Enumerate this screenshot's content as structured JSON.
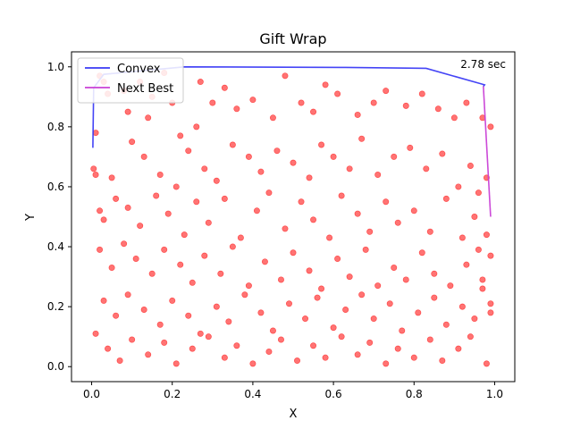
{
  "chart_data": {
    "type": "scatter",
    "title": "Gift Wrap",
    "xlabel": "X",
    "ylabel": "Y",
    "xlim": [
      -0.05,
      1.05
    ],
    "ylim": [
      -0.05,
      1.05
    ],
    "xticks": [
      "0.0",
      "0.2",
      "0.4",
      "0.6",
      "0.8",
      "1.0"
    ],
    "yticks": [
      "0.0",
      "0.2",
      "0.4",
      "0.6",
      "0.8",
      "1.0"
    ],
    "annotation": "2.78 sec",
    "legend": {
      "placement": "top-left",
      "entries": [
        {
          "label": "Convex",
          "color": "#3a3af5"
        },
        {
          "label": "Next Best",
          "color": "#c940d6"
        }
      ]
    },
    "points_color": "#ff0000",
    "points_note": "~500 uniformly distributed random points in [0,1]x[0,1]; representative subset reproduced",
    "series": [
      {
        "name": "Convex",
        "color": "#3a3af5",
        "x": [
          0.003,
          0.005,
          0.03,
          0.23,
          0.63,
          0.83,
          0.975,
          0.972
        ],
        "y": [
          0.73,
          0.93,
          0.975,
          1.0,
          0.998,
          0.995,
          0.94,
          0.935
        ]
      },
      {
        "name": "Next Best",
        "color": "#c940d6",
        "x": [
          0.972,
          0.99
        ],
        "y": [
          0.935,
          0.5
        ]
      }
    ],
    "points": [
      [
        0.02,
        0.97
      ],
      [
        0.03,
        0.95
      ],
      [
        0.04,
        0.91
      ],
      [
        0.01,
        0.78
      ],
      [
        0.005,
        0.66
      ],
      [
        0.01,
        0.64
      ],
      [
        0.02,
        0.52
      ],
      [
        0.05,
        0.63
      ],
      [
        0.03,
        0.49
      ],
      [
        0.08,
        0.92
      ],
      [
        0.09,
        0.85
      ],
      [
        0.12,
        0.95
      ],
      [
        0.15,
        0.9
      ],
      [
        0.14,
        0.83
      ],
      [
        0.18,
        0.98
      ],
      [
        0.2,
        0.88
      ],
      [
        0.22,
        0.77
      ],
      [
        0.26,
        0.8
      ],
      [
        0.27,
        0.95
      ],
      [
        0.3,
        0.88
      ],
      [
        0.33,
        0.93
      ],
      [
        0.36,
        0.86
      ],
      [
        0.4,
        0.89
      ],
      [
        0.45,
        0.83
      ],
      [
        0.48,
        0.97
      ],
      [
        0.52,
        0.88
      ],
      [
        0.55,
        0.85
      ],
      [
        0.58,
        0.94
      ],
      [
        0.61,
        0.91
      ],
      [
        0.66,
        0.84
      ],
      [
        0.7,
        0.88
      ],
      [
        0.73,
        0.92
      ],
      [
        0.78,
        0.87
      ],
      [
        0.82,
        0.91
      ],
      [
        0.86,
        0.86
      ],
      [
        0.9,
        0.83
      ],
      [
        0.93,
        0.88
      ],
      [
        0.97,
        0.83
      ],
      [
        0.1,
        0.75
      ],
      [
        0.13,
        0.7
      ],
      [
        0.17,
        0.64
      ],
      [
        0.21,
        0.6
      ],
      [
        0.24,
        0.72
      ],
      [
        0.28,
        0.66
      ],
      [
        0.31,
        0.62
      ],
      [
        0.35,
        0.74
      ],
      [
        0.39,
        0.7
      ],
      [
        0.42,
        0.65
      ],
      [
        0.46,
        0.72
      ],
      [
        0.5,
        0.68
      ],
      [
        0.54,
        0.63
      ],
      [
        0.57,
        0.74
      ],
      [
        0.6,
        0.7
      ],
      [
        0.64,
        0.66
      ],
      [
        0.67,
        0.76
      ],
      [
        0.71,
        0.64
      ],
      [
        0.75,
        0.7
      ],
      [
        0.79,
        0.73
      ],
      [
        0.83,
        0.66
      ],
      [
        0.87,
        0.71
      ],
      [
        0.91,
        0.6
      ],
      [
        0.94,
        0.67
      ],
      [
        0.96,
        0.58
      ],
      [
        0.06,
        0.56
      ],
      [
        0.09,
        0.53
      ],
      [
        0.12,
        0.47
      ],
      [
        0.16,
        0.57
      ],
      [
        0.19,
        0.51
      ],
      [
        0.23,
        0.44
      ],
      [
        0.26,
        0.55
      ],
      [
        0.29,
        0.48
      ],
      [
        0.33,
        0.56
      ],
      [
        0.37,
        0.43
      ],
      [
        0.41,
        0.52
      ],
      [
        0.44,
        0.58
      ],
      [
        0.48,
        0.46
      ],
      [
        0.52,
        0.55
      ],
      [
        0.55,
        0.49
      ],
      [
        0.59,
        0.43
      ],
      [
        0.62,
        0.57
      ],
      [
        0.66,
        0.51
      ],
      [
        0.69,
        0.45
      ],
      [
        0.73,
        0.55
      ],
      [
        0.76,
        0.48
      ],
      [
        0.8,
        0.52
      ],
      [
        0.84,
        0.45
      ],
      [
        0.88,
        0.56
      ],
      [
        0.92,
        0.43
      ],
      [
        0.95,
        0.5
      ],
      [
        0.98,
        0.44
      ],
      [
        0.02,
        0.39
      ],
      [
        0.05,
        0.33
      ],
      [
        0.08,
        0.41
      ],
      [
        0.11,
        0.36
      ],
      [
        0.15,
        0.31
      ],
      [
        0.18,
        0.39
      ],
      [
        0.22,
        0.34
      ],
      [
        0.25,
        0.28
      ],
      [
        0.28,
        0.37
      ],
      [
        0.32,
        0.31
      ],
      [
        0.35,
        0.4
      ],
      [
        0.39,
        0.27
      ],
      [
        0.43,
        0.35
      ],
      [
        0.47,
        0.29
      ],
      [
        0.5,
        0.38
      ],
      [
        0.54,
        0.32
      ],
      [
        0.57,
        0.26
      ],
      [
        0.61,
        0.36
      ],
      [
        0.64,
        0.3
      ],
      [
        0.68,
        0.39
      ],
      [
        0.71,
        0.27
      ],
      [
        0.75,
        0.33
      ],
      [
        0.78,
        0.29
      ],
      [
        0.82,
        0.38
      ],
      [
        0.85,
        0.31
      ],
      [
        0.89,
        0.27
      ],
      [
        0.93,
        0.34
      ],
      [
        0.97,
        0.29
      ],
      [
        0.99,
        0.37
      ],
      [
        0.03,
        0.22
      ],
      [
        0.06,
        0.17
      ],
      [
        0.09,
        0.24
      ],
      [
        0.13,
        0.19
      ],
      [
        0.17,
        0.14
      ],
      [
        0.2,
        0.22
      ],
      [
        0.24,
        0.17
      ],
      [
        0.27,
        0.11
      ],
      [
        0.31,
        0.2
      ],
      [
        0.34,
        0.15
      ],
      [
        0.38,
        0.24
      ],
      [
        0.42,
        0.18
      ],
      [
        0.45,
        0.12
      ],
      [
        0.49,
        0.21
      ],
      [
        0.53,
        0.16
      ],
      [
        0.56,
        0.23
      ],
      [
        0.6,
        0.13
      ],
      [
        0.63,
        0.19
      ],
      [
        0.67,
        0.24
      ],
      [
        0.7,
        0.16
      ],
      [
        0.74,
        0.21
      ],
      [
        0.77,
        0.12
      ],
      [
        0.81,
        0.18
      ],
      [
        0.85,
        0.23
      ],
      [
        0.88,
        0.14
      ],
      [
        0.92,
        0.2
      ],
      [
        0.95,
        0.16
      ],
      [
        0.99,
        0.21
      ],
      [
        0.01,
        0.11
      ],
      [
        0.04,
        0.06
      ],
      [
        0.07,
        0.02
      ],
      [
        0.1,
        0.09
      ],
      [
        0.14,
        0.04
      ],
      [
        0.18,
        0.08
      ],
      [
        0.21,
        0.01
      ],
      [
        0.25,
        0.06
      ],
      [
        0.29,
        0.1
      ],
      [
        0.33,
        0.03
      ],
      [
        0.36,
        0.07
      ],
      [
        0.4,
        0.01
      ],
      [
        0.44,
        0.05
      ],
      [
        0.47,
        0.09
      ],
      [
        0.51,
        0.02
      ],
      [
        0.55,
        0.07
      ],
      [
        0.58,
        0.03
      ],
      [
        0.62,
        0.1
      ],
      [
        0.66,
        0.04
      ],
      [
        0.69,
        0.08
      ],
      [
        0.73,
        0.01
      ],
      [
        0.76,
        0.06
      ],
      [
        0.8,
        0.03
      ],
      [
        0.84,
        0.09
      ],
      [
        0.87,
        0.02
      ],
      [
        0.91,
        0.06
      ],
      [
        0.94,
        0.1
      ],
      [
        0.98,
        0.01
      ],
      [
        0.99,
        0.18
      ],
      [
        0.97,
        0.26
      ],
      [
        0.96,
        0.39
      ],
      [
        0.98,
        0.63
      ],
      [
        0.99,
        0.8
      ]
    ]
  }
}
